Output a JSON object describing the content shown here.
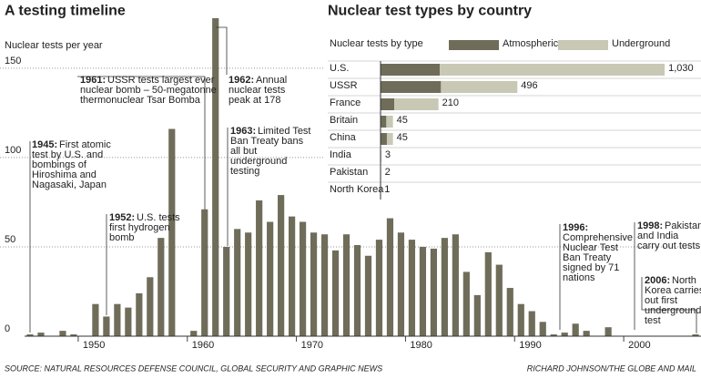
{
  "chart_data": [
    {
      "type": "bar",
      "title": "A testing timeline",
      "y_label": "Nuclear tests per year",
      "categories": [
        null,
        null,
        null,
        null,
        null,
        "1950",
        null,
        null,
        null,
        null,
        null,
        null,
        null,
        null,
        null,
        "1960",
        null,
        null,
        null,
        null,
        null,
        null,
        null,
        null,
        null,
        "1970",
        null,
        null,
        null,
        null,
        null,
        null,
        null,
        null,
        null,
        "1980",
        null,
        null,
        null,
        null,
        null,
        null,
        null,
        null,
        null,
        "1990",
        null,
        null,
        null,
        null,
        null,
        null,
        null,
        null,
        null,
        "2000",
        null,
        null,
        null,
        null,
        null,
        null
      ],
      "values": [
        1,
        2,
        0,
        3,
        1,
        0,
        18,
        11,
        18,
        16,
        24,
        33,
        55,
        116,
        0,
        3,
        71,
        178,
        50,
        60,
        58,
        76,
        64,
        79,
        67,
        64,
        58,
        57,
        48,
        57,
        51,
        45,
        54,
        66,
        58,
        54,
        50,
        49,
        55,
        57,
        36,
        23,
        47,
        40,
        27,
        18,
        14,
        8,
        1,
        2,
        7,
        3,
        0,
        5,
        0,
        0,
        0,
        0,
        0,
        0,
        0,
        1
      ],
      "color": "#6f6d5a",
      "ylim": [
        0,
        180
      ],
      "yticks": [
        0,
        50,
        100,
        150
      ],
      "grid": true,
      "annotations": [
        {
          "year": "1945:",
          "lines": [
            "First atomic",
            "test by U.S. and",
            "bombings of",
            "Hiroshima and",
            "Nagasaki, Japan"
          ]
        },
        {
          "year": "1952:",
          "lines": [
            "U.S. tests",
            "first hydrogen",
            "bomb"
          ]
        },
        {
          "year": "1961:",
          "lines": [
            "USSR tests largest ever",
            "nuclear bomb – 50-megatonne",
            "thermonuclear Tsar Bomba"
          ]
        },
        {
          "year": "1962:",
          "lines": [
            "Annual",
            "nuclear tests",
            "peak at 178"
          ]
        },
        {
          "year": "1963:",
          "lines": [
            "Limited Test",
            "Ban Treaty bans",
            "all but",
            "underground",
            "testing"
          ]
        },
        {
          "year": "1996:",
          "lines": [
            "",
            "Comprehensive",
            "Nuclear Test",
            "Ban Treaty",
            "signed by 71",
            "nations"
          ]
        },
        {
          "year": "1998:",
          "lines": [
            "Pakistan",
            "and India",
            "carry out tests"
          ]
        },
        {
          "year": "2006:",
          "lines": [
            "North",
            "Korea carries",
            "out first",
            "underground",
            "test"
          ]
        }
      ]
    },
    {
      "type": "stacked-hbar",
      "title": "Nuclear test types by country",
      "legend_title": "Nuclear tests by type",
      "categories": [
        "U.S.",
        "USSR",
        "France",
        "Britain",
        "China",
        "India",
        "Pakistan",
        "North Korea"
      ],
      "series": [
        {
          "name": "Atmospheric",
          "color": "#6f6d5a",
          "values": [
            215,
            219,
            50,
            21,
            23,
            0,
            0,
            0
          ]
        },
        {
          "name": "Underground",
          "color": "#c9c8b5",
          "values": [
            815,
            277,
            160,
            24,
            22,
            3,
            2,
            1
          ]
        }
      ],
      "totals": [
        1030,
        496,
        210,
        45,
        45,
        3,
        2,
        1
      ],
      "total_labels": [
        "1,030",
        "496",
        "210",
        "45",
        "45",
        "3",
        "2",
        "1"
      ]
    }
  ],
  "source": "SOURCE: NATURAL RESOURCES DEFENSE COUNCIL, GLOBAL SECURITY AND GRAPHIC NEWS",
  "credit": "RICHARD JOHNSON/THE GLOBE AND MAIL"
}
